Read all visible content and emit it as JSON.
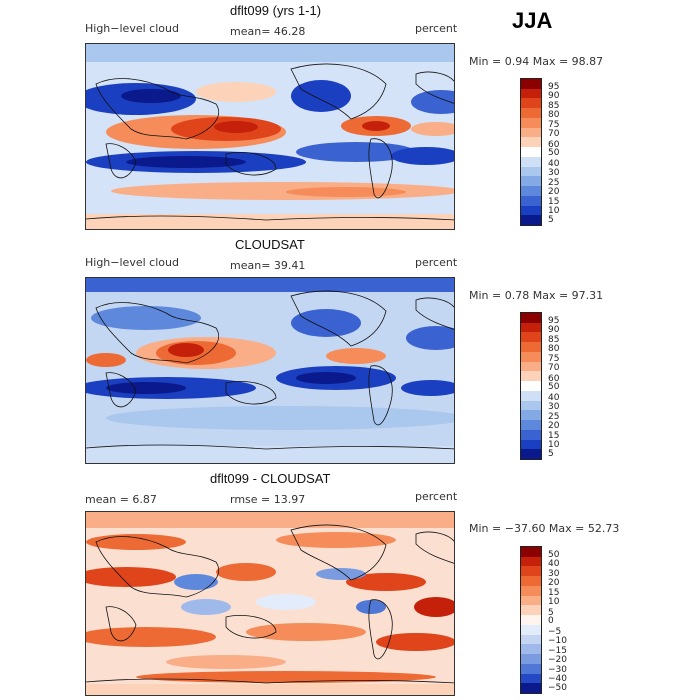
{
  "season": "JJA",
  "panels": [
    {
      "title": "dflt099 (yrs 1-1)",
      "left_label": "High−level cloud",
      "center_label": "mean=   46.28",
      "right_label": "percent",
      "minmax": "Min =    0.94 Max =   98.87",
      "colorbar": [
        "95",
        "90",
        "85",
        "80",
        "75",
        "70",
        "60",
        "50",
        "40",
        "30",
        "25",
        "20",
        "15",
        "10",
        "5"
      ],
      "colors": [
        "#8b0000",
        "#c4200a",
        "#e0441a",
        "#ee6a34",
        "#f58c5a",
        "#f9ae88",
        "#fcd3b8",
        "#ffffff",
        "#cfe0f6",
        "#aac7ee",
        "#84aae6",
        "#5d88dc",
        "#3a63d1",
        "#1b3fc1",
        "#0a1a8c"
      ]
    },
    {
      "title": "CLOUDSAT",
      "left_label": "High−level cloud",
      "center_label": "mean=   39.41",
      "right_label": "percent",
      "minmax": "Min =    0.78 Max =   97.31",
      "colorbar": [
        "95",
        "90",
        "85",
        "80",
        "75",
        "70",
        "60",
        "50",
        "40",
        "30",
        "25",
        "20",
        "15",
        "10",
        "5"
      ],
      "colors": [
        "#8b0000",
        "#c4200a",
        "#e0441a",
        "#ee6a34",
        "#f58c5a",
        "#f9ae88",
        "#fcd3b8",
        "#ffffff",
        "#cfe0f6",
        "#aac7ee",
        "#84aae6",
        "#5d88dc",
        "#3a63d1",
        "#1b3fc1",
        "#0a1a8c"
      ]
    },
    {
      "title": "dflt099 - CLOUDSAT",
      "left_label": "mean =    6.87",
      "center_label": "rmse =   13.97",
      "right_label": "percent",
      "minmax": "Min = −37.60 Max =   52.73",
      "colorbar": [
        "50",
        "40",
        "30",
        "20",
        "15",
        "10",
        "5",
        "0",
        "−5",
        "−10",
        "−15",
        "−20",
        "−30",
        "−40",
        "−50"
      ],
      "colors": [
        "#8b0000",
        "#c4200a",
        "#e0441a",
        "#ee6a34",
        "#f58c5a",
        "#f9ae88",
        "#fcd3b8",
        "#fff4ee",
        "#e3ecfa",
        "#c3d5f2",
        "#9fbaea",
        "#7a9be0",
        "#4e77d6",
        "#2548c4",
        "#0a1a8c"
      ]
    }
  ]
}
